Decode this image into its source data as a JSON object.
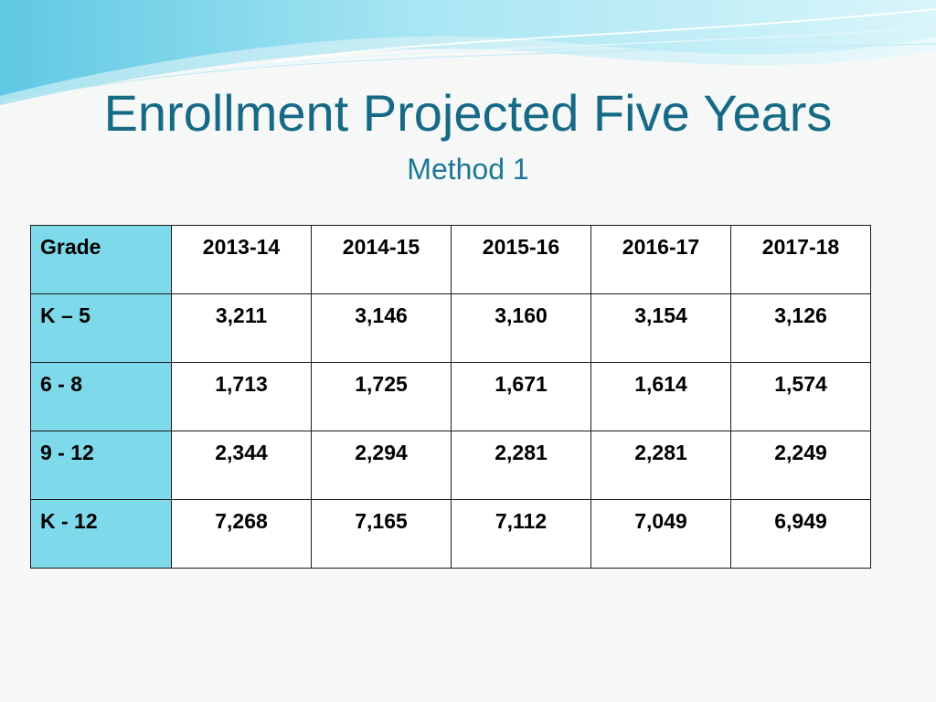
{
  "slide": {
    "title": "Enrollment Projected Five Years",
    "subtitle": "Method 1"
  },
  "table": {
    "header": [
      "Grade",
      "2013-14",
      "2014-15",
      "2015-16",
      "2016-17",
      "2017-18"
    ],
    "rows": [
      {
        "grade": "K – 5",
        "values": [
          "3,211",
          "3,146",
          "3,160",
          "3,154",
          "3,126"
        ]
      },
      {
        "grade": "6 - 8",
        "values": [
          "1,713",
          "1,725",
          "1,671",
          "1,614",
          "1,574"
        ]
      },
      {
        "grade": "9 - 12",
        "values": [
          "2,344",
          "2,294",
          "2,281",
          "2,281",
          "2,249"
        ]
      },
      {
        "grade": "K - 12",
        "values": [
          "7,268",
          "7,165",
          "7,112",
          "7,049",
          "6,949"
        ]
      }
    ]
  },
  "colors": {
    "title": "#176a86",
    "grade_column": "#7ed9ea",
    "wave_light": "#c9f0f8",
    "wave_mid": "#7fd8ec"
  }
}
